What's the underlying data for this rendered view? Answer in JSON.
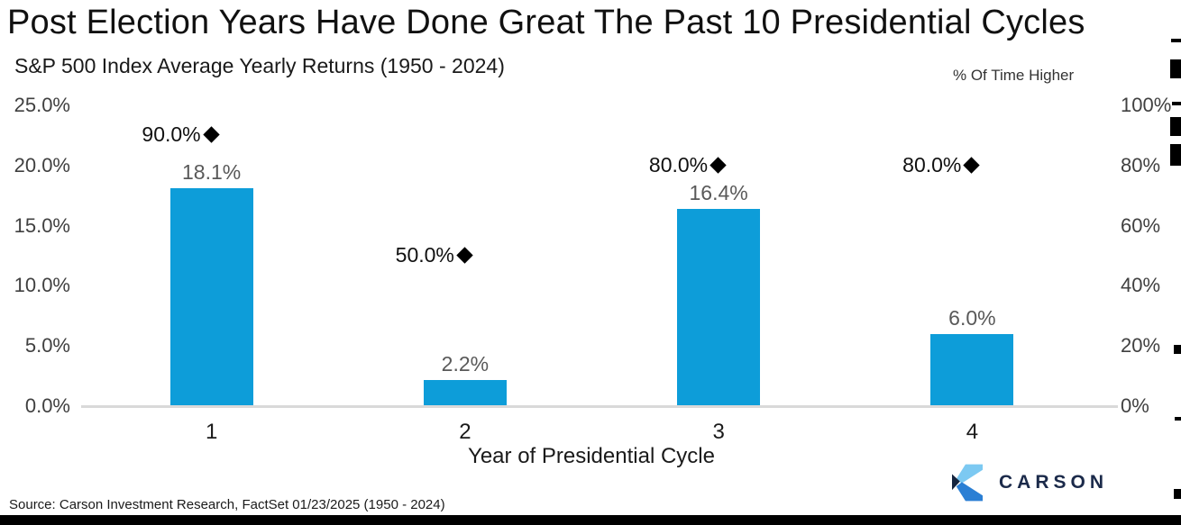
{
  "title": "Post Election Years Have Done Great The Past 10 Presidential Cycles",
  "subtitle": "S&P 500 Index Average Yearly Returns (1950 - 2024)",
  "right_axis_title": "% Of Time Higher",
  "source": "Source: Carson Investment Research, FactSet 01/23/2025 (1950 - 2024)",
  "logo": {
    "text": "CARSON",
    "mark": "carson-chevron",
    "navy": "#1b2a4a",
    "light_blue": "#7cc9f2",
    "mid_blue": "#2b7fd4"
  },
  "colors": {
    "bar": "#0D9DD9",
    "diamond": "#000000",
    "axis_line": "#d9d9d9",
    "tick_label": "#404040",
    "data_label": "#595959"
  },
  "chart_data": {
    "type": "bar",
    "title": "Post Election Years Have Done Great The Past 10 Presidential Cycles",
    "subtitle": "S&P 500 Index Average Yearly Returns (1950 - 2024)",
    "xlabel": "Year of Presidential Cycle",
    "categories": [
      "1",
      "2",
      "3",
      "4"
    ],
    "series": [
      {
        "name": "S&P 500 Index Average Yearly Returns",
        "type": "bar",
        "axis": "left",
        "values": [
          18.1,
          2.2,
          16.4,
          6.0
        ],
        "labels": [
          "18.1%",
          "2.2%",
          "16.4%",
          "6.0%"
        ]
      },
      {
        "name": "% Of Time Higher",
        "type": "scatter",
        "marker": "diamond",
        "axis": "right",
        "values": [
          90.0,
          50.0,
          80.0,
          80.0
        ],
        "labels": [
          "90.0%",
          "50.0%",
          "80.0%",
          "80.0%"
        ]
      }
    ],
    "left_axis": {
      "min": 0,
      "max": 25,
      "ticks": [
        "25.0%",
        "20.0%",
        "15.0%",
        "10.0%",
        "5.0%",
        "0.0%"
      ]
    },
    "right_axis": {
      "min": 0,
      "max": 100,
      "ticks": [
        "100%",
        "80%",
        "60%",
        "40%",
        "20%",
        "0%"
      ]
    },
    "grid": false,
    "legend": "none"
  }
}
